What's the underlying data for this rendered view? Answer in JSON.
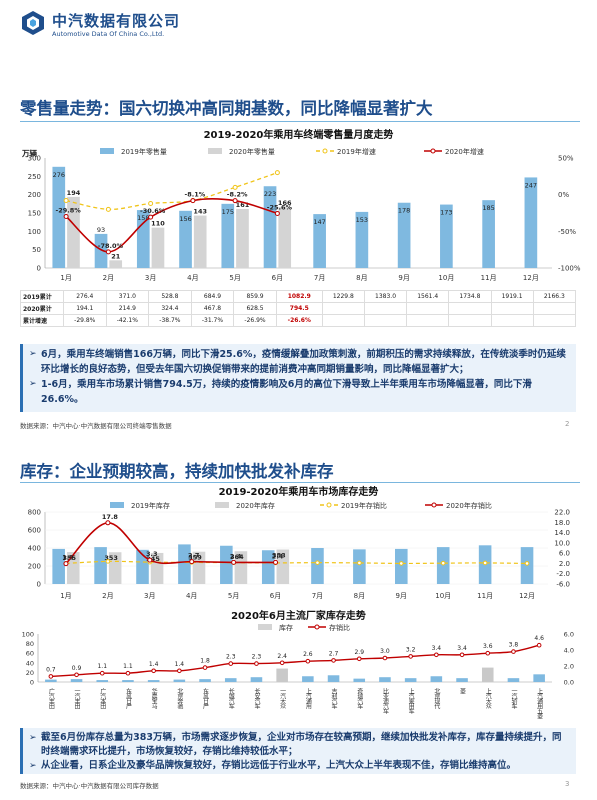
{
  "brand": {
    "name_cn": "中汽数据有限公司",
    "name_en": "Automotive Data Of China Co.,Ltd."
  },
  "section1": {
    "title": "零售量走势：国六切换冲高同期基数，同比降幅显著扩大",
    "notes": [
      "6月，乘用车终端销售166万辆，同比下滑25.6%，疫情缓解叠加政策刺激，前期积压的需求持续释放，在传统淡季时仍延续环比增长的良好态势，但受去年国六切换促销带来的提前消费冲高同期销量影响，同比降幅显著扩大；",
      "1-6月，乘用车市场累计销售794.5万，持续的疫情影响及6月的高位下滑导致上半年乘用车市场降幅显著，同比下滑26.6%。"
    ],
    "source": "数据来源：中汽中心·中汽数据有限公司终端零售数据",
    "page": "2"
  },
  "section2": {
    "title": "库存：企业预期较高，持续加快批发补库存",
    "notes": [
      "截至6月份库存总量为383万辆，市场需求逐步恢复，企业对市场存在较高预期，继续加快批发补库存，库存量持续提升，同时终端需求环比提升，市场恢复较好，存销比维持较低水平；",
      "从企业看，日系企业及豪华品牌恢复较好，存销比远低于行业水平，上汽大众上半年表现不佳，存销比维持高位。"
    ],
    "source": "数据来源：中汽中心·中汽数据有限公司库存数据",
    "page": "3"
  },
  "chart_data": [
    {
      "type": "bar",
      "title": "2019-2020年乘用车终端零售量月度走势",
      "ylabel": "万辆",
      "ylim": [
        0,
        300
      ],
      "y2lim": [
        -100,
        50
      ],
      "categories": [
        "1月",
        "2月",
        "3月",
        "4月",
        "5月",
        "6月",
        "7月",
        "8月",
        "9月",
        "10月",
        "11月",
        "12月"
      ],
      "y_ticks": [
        "0",
        "50",
        "100",
        "150",
        "200",
        "250",
        "300"
      ],
      "y2_ticks": [
        "50%",
        "0%",
        "-50%",
        "-100%"
      ],
      "series": [
        {
          "name": "2019年零售量",
          "values": [
            276,
            93,
            158,
            156,
            175,
            223,
            147,
            153,
            178,
            173,
            185,
            247
          ]
        },
        {
          "name": "2020年零售量",
          "values": [
            194,
            21,
            110,
            143,
            161,
            166,
            null,
            null,
            null,
            null,
            null,
            null
          ]
        },
        {
          "name": "2019年增速",
          "values": [
            -8,
            -20,
            -12,
            -8,
            10,
            30,
            null,
            null,
            null,
            null,
            null,
            null
          ]
        },
        {
          "name": "2020年增速",
          "values": [
            -29.8,
            -78.0,
            -30.6,
            -8.1,
            -8.2,
            -25.6,
            null,
            null,
            null,
            null,
            null,
            null
          ]
        }
      ],
      "growth_labels": [
        "-29.8%",
        "-78.0%",
        "-30.6%",
        "-8.1%",
        "-8.2%",
        "-25.6%"
      ],
      "table": {
        "rows": [
          {
            "label": "2019累计",
            "values": [
              "276.4",
              "371.0",
              "528.8",
              "684.9",
              "859.9",
              "1082.9",
              "1229.8",
              "1383.0",
              "1561.4",
              "1734.8",
              "1919.1",
              "2166.3"
            ],
            "hl": 5
          },
          {
            "label": "2020累计",
            "values": [
              "194.1",
              "214.9",
              "324.4",
              "467.8",
              "628.5",
              "794.5",
              "",
              "",
              "",
              "",
              "",
              ""
            ],
            "hl": 5
          },
          {
            "label": "累计增速",
            "values": [
              "-29.8%",
              "-42.1%",
              "-38.7%",
              "-31.7%",
              "-26.9%",
              "-26.6%",
              "",
              "",
              "",
              "",
              "",
              ""
            ],
            "hl": 5
          }
        ]
      }
    },
    {
      "type": "bar",
      "title": "2019-2020年乘用车市场库存走势",
      "ylim": [
        0,
        800
      ],
      "y2lim": [
        -6,
        22
      ],
      "categories": [
        "1月",
        "2月",
        "3月",
        "4月",
        "5月",
        "6月",
        "7月",
        "8月",
        "9月",
        "10月",
        "11月",
        "12月"
      ],
      "y_ticks": [
        "0",
        "200",
        "400",
        "600",
        "800"
      ],
      "y2_ticks": [
        "22.0",
        "18.0",
        "14.0",
        "10.0",
        "6.0",
        "2.0",
        "-2.0",
        "-6.0"
      ],
      "series": [
        {
          "name": "2019年库存",
          "values": [
            390,
            410,
            380,
            440,
            425,
            375,
            400,
            385,
            390,
            410,
            430,
            410
          ]
        },
        {
          "name": "2020年库存",
          "values": [
            355,
            353,
            345,
            359,
            364,
            383,
            null,
            null,
            null,
            null,
            null,
            null
          ]
        },
        {
          "name": "2019年存销比",
          "values": [
            2.0,
            2.8,
            2.5,
            2.4,
            2.3,
            2.2,
            2.3,
            2.2,
            2.0,
            2.1,
            2.2,
            2.0
          ]
        },
        {
          "name": "2020年存销比",
          "values": [
            1.9,
            17.8,
            3.3,
            2.7,
            2.4,
            2.4,
            null,
            null,
            null,
            null,
            null,
            null
          ]
        }
      ],
      "bar_labels": [
        "355",
        "353",
        "345",
        "359",
        "364",
        "383"
      ],
      "ratio_labels": [
        "1.9",
        "17.8",
        "3.3",
        "2.7",
        "2.4",
        "2.4"
      ]
    },
    {
      "type": "bar",
      "title": "2020年6月主流厂家库存走势",
      "ylim": [
        0,
        100
      ],
      "y2lim": [
        0,
        6
      ],
      "categories": [
        "广汽丰田",
        "一汽丰田",
        "广汽本田",
        "东风日产",
        "华晨宝马",
        "北京奔驰",
        "东风日产",
        "长城汽车",
        "长安汽车",
        "一汽大众",
        "上汽通用",
        "吉利汽车",
        "奇瑞汽车",
        "比亚迪汽车",
        "上汽乘用车",
        "北京现代",
        "菱",
        "上汽大众",
        "一汽轿车",
        "上汽通用五菱"
      ],
      "y_ticks": [
        "0",
        "20",
        "40",
        "60",
        "80",
        "100"
      ],
      "y2_ticks": [
        "0.0",
        "2.0",
        "4.0",
        "6.0"
      ],
      "series": [
        {
          "name": "库存",
          "values": [
            5,
            6,
            4,
            4,
            4,
            5,
            6,
            8,
            10,
            28,
            12,
            14,
            7,
            10,
            8,
            12,
            8,
            30,
            8,
            16
          ]
        },
        {
          "name": "存销比",
          "values": [
            0.7,
            0.9,
            1.1,
            1.1,
            1.4,
            1.4,
            1.8,
            2.3,
            2.3,
            2.4,
            2.6,
            2.7,
            2.9,
            3.0,
            3.2,
            3.4,
            3.4,
            3.6,
            3.8,
            4.6
          ]
        }
      ],
      "ratio_labels": [
        "0.7",
        "0.9",
        "1.1",
        "1.1",
        "1.4",
        "1.4",
        "1.8",
        "2.3",
        "2.3",
        "2.4",
        "2.6",
        "2.7",
        "2.9",
        "3.0",
        "3.2",
        "3.4",
        "3.4",
        "3.6",
        "3.8",
        "4.6"
      ]
    }
  ],
  "colors": {
    "c2019": "#7fb9e0",
    "c2020": "#d4d4d4",
    "line2019": "#f0c419",
    "line2020": "#c00000",
    "brand": "#1f4e8c"
  }
}
